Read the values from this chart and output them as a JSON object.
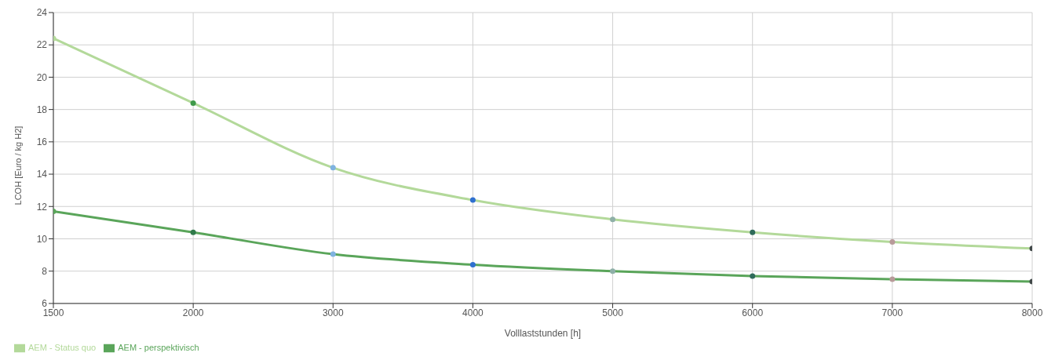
{
  "chart_data": {
    "type": "line",
    "xlabel": "Volllaststunden [h]",
    "ylabel": "LCOH [Euro / kg H2]",
    "categories": [
      "1500",
      "2000",
      "3000",
      "4000",
      "5000",
      "6000",
      "7000",
      "8000"
    ],
    "series": [
      {
        "name": "AEM - Status quo",
        "color": "#b3d99a",
        "values": [
          22.4,
          18.4,
          14.4,
          12.4,
          11.2,
          10.4,
          9.8,
          9.4
        ],
        "colors": [
          "#b3d99a",
          "#3f9a4a",
          "#7fb2e0",
          "#2f6fd0",
          "#8fb0a8",
          "#2f6b5a",
          "#b89a9a",
          "#404848"
        ]
      },
      {
        "name": "AEM - perspektivisch",
        "color": "#5aa55a",
        "values": [
          11.7,
          10.4,
          9.05,
          8.4,
          8.0,
          7.7,
          7.5,
          7.35
        ],
        "colors": [
          "#5aa55a",
          "#2f7a4a",
          "#7fb2e0",
          "#2f6fd0",
          "#8fb0a8",
          "#2f6b5a",
          "#b89a9a",
          "#404848"
        ]
      }
    ],
    "ylim": [
      6,
      24
    ],
    "yticks": [
      6,
      8,
      10,
      12,
      14,
      16,
      18,
      20,
      22,
      24
    ],
    "grid": true,
    "legend": "bottom left",
    "marker": "circle",
    "line_style": "solid"
  }
}
